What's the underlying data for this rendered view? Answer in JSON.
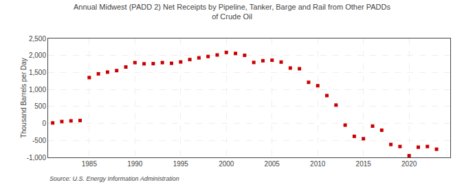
{
  "chart_data": {
    "type": "scatter",
    "title": "Annual Midwest (PADD 2) Net Receipts by Pipeline, Tanker, Barge and Rail from Other PADDs\nof Crude Oil",
    "ylabel": "Thousand Barrels per Day",
    "annotations": [
      "Source: U.S. Energy Information Administration"
    ],
    "color": "#cc0000",
    "marker": "square",
    "x": [
      1981,
      1982,
      1983,
      1984,
      1985,
      1986,
      1987,
      1988,
      1989,
      1990,
      1991,
      1992,
      1993,
      1994,
      1995,
      1996,
      1997,
      1998,
      1999,
      2000,
      2001,
      2002,
      2003,
      2004,
      2005,
      2006,
      2007,
      2008,
      2009,
      2010,
      2011,
      2012,
      2013,
      2014,
      2015,
      2016,
      2017,
      2018,
      2019,
      2020,
      2021,
      2022,
      2023
    ],
    "values": [
      15,
      55,
      75,
      85,
      1350,
      1460,
      1510,
      1555,
      1660,
      1790,
      1755,
      1760,
      1790,
      1770,
      1810,
      1880,
      1930,
      1970,
      2015,
      2090,
      2060,
      2005,
      1795,
      1845,
      1860,
      1805,
      1630,
      1610,
      1210,
      1110,
      820,
      540,
      -50,
      -380,
      -450,
      -80,
      -200,
      -620,
      -680,
      -950,
      -700,
      -680,
      -760
    ],
    "xlim": [
      1980.5,
      2024.5
    ],
    "xticks": [
      1985,
      1990,
      1995,
      2000,
      2005,
      2010,
      2015,
      2020
    ],
    "ylim": [
      -1000,
      2500
    ],
    "yticks": [
      {
        "value": -1000,
        "label": "-1,000"
      },
      -500,
      0,
      500,
      {
        "value": 1000,
        "label": "1,000"
      },
      {
        "value": 1500,
        "label": "1,500"
      },
      {
        "value": 2000,
        "label": "2,000"
      },
      {
        "value": 2500,
        "label": "2,500"
      }
    ],
    "grid": true
  }
}
